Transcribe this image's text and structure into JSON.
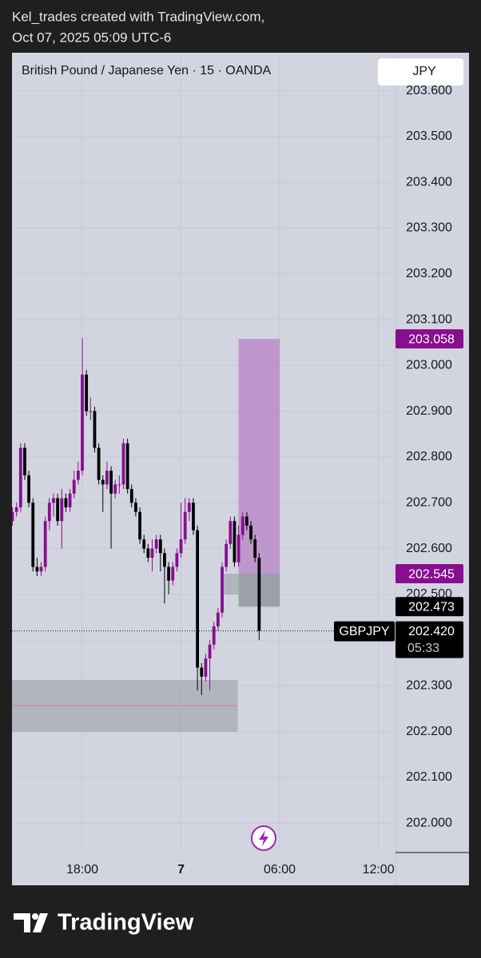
{
  "header": {
    "line1": "Kel_trades created with TradingView.com,",
    "line2": "Oct 07, 2025 05:09 UTC-6"
  },
  "currency": "JPY",
  "brand": "TradingView",
  "chart_data": {
    "type": "candlestick",
    "title": "British Pound / Japanese Yen · 15 · OANDA",
    "symbol": "GBPJPY",
    "countdown": "05:33",
    "up_color": "#880e8f",
    "down_color": "#000000",
    "x": [
      13.75,
      14,
      14.25,
      14.5,
      14.75,
      15,
      15.25,
      15.5,
      15.75,
      16,
      16.25,
      16.5,
      16.75,
      17,
      17.25,
      17.5,
      17.75,
      18,
      18.25,
      18.5,
      18.75,
      19,
      19.25,
      19.5,
      19.75,
      20,
      20.25,
      20.5,
      20.75,
      21,
      21.25,
      21.5,
      21.75,
      22,
      22.25,
      22.5,
      22.75,
      23,
      23.25,
      23.5,
      23.75,
      24,
      24.25,
      24.5,
      24.75,
      25,
      25.25,
      25.5,
      25.75,
      26,
      26.25,
      26.5,
      26.75,
      27,
      27.25,
      27.5,
      27.75,
      28,
      28.25,
      28.5,
      28.75
    ],
    "open": [
      202.66,
      202.68,
      202.69,
      202.82,
      202.76,
      202.7,
      202.56,
      202.55,
      202.56,
      202.66,
      202.7,
      202.71,
      202.66,
      202.71,
      202.69,
      202.72,
      202.75,
      202.77,
      202.98,
      202.9,
      202.9,
      202.82,
      202.75,
      202.74,
      202.77,
      202.72,
      202.74,
      202.74,
      202.83,
      202.73,
      202.7,
      202.68,
      202.62,
      202.6,
      202.58,
      202.6,
      202.62,
      202.59,
      202.56,
      202.53,
      202.56,
      202.59,
      202.62,
      202.68,
      202.7,
      202.64,
      202.34,
      202.32,
      202.36,
      202.39,
      202.43,
      202.46,
      202.56,
      202.61,
      202.66,
      202.57,
      202.63,
      202.67,
      202.65,
      202.62,
      202.58
    ],
    "high": [
      202.69,
      202.7,
      202.83,
      202.83,
      202.77,
      202.71,
      202.58,
      202.57,
      202.67,
      202.71,
      202.72,
      202.72,
      202.73,
      202.72,
      202.73,
      202.77,
      202.79,
      203.06,
      202.99,
      202.93,
      202.91,
      202.83,
      202.76,
      202.79,
      202.78,
      202.75,
      202.76,
      202.84,
      202.84,
      202.74,
      202.71,
      202.69,
      202.63,
      202.61,
      202.62,
      202.63,
      202.63,
      202.6,
      202.57,
      202.57,
      202.6,
      202.7,
      202.71,
      202.71,
      202.71,
      202.65,
      202.35,
      202.37,
      202.4,
      202.44,
      202.47,
      202.57,
      202.62,
      202.67,
      202.67,
      202.65,
      202.68,
      202.68,
      202.66,
      202.63,
      202.59
    ],
    "low": [
      202.65,
      202.67,
      202.68,
      202.75,
      202.69,
      202.55,
      202.54,
      202.54,
      202.55,
      202.64,
      202.67,
      202.65,
      202.6,
      202.68,
      202.68,
      202.71,
      202.74,
      202.76,
      202.89,
      202.88,
      202.81,
      202.74,
      202.68,
      202.73,
      202.6,
      202.71,
      202.72,
      202.73,
      202.72,
      202.69,
      202.67,
      202.61,
      202.59,
      202.57,
      202.55,
      202.59,
      202.55,
      202.48,
      202.5,
      202.52,
      202.55,
      202.58,
      202.61,
      202.66,
      202.63,
      202.29,
      202.28,
      202.31,
      202.29,
      202.38,
      202.42,
      202.45,
      202.55,
      202.6,
      202.56,
      202.56,
      202.62,
      202.64,
      202.61,
      202.57,
      202.4
    ],
    "close": [
      202.68,
      202.69,
      202.82,
      202.76,
      202.7,
      202.56,
      202.55,
      202.56,
      202.66,
      202.7,
      202.71,
      202.66,
      202.71,
      202.69,
      202.72,
      202.75,
      202.77,
      202.98,
      202.9,
      202.9,
      202.82,
      202.75,
      202.74,
      202.77,
      202.72,
      202.74,
      202.74,
      202.83,
      202.73,
      202.7,
      202.68,
      202.62,
      202.6,
      202.58,
      202.6,
      202.62,
      202.59,
      202.56,
      202.53,
      202.56,
      202.59,
      202.62,
      202.68,
      202.7,
      202.64,
      202.34,
      202.32,
      202.36,
      202.39,
      202.43,
      202.46,
      202.56,
      202.61,
      202.66,
      202.57,
      202.63,
      202.67,
      202.65,
      202.62,
      202.58,
      202.42
    ],
    "xlim": [
      13.725,
      37.04
    ],
    "xticks": [
      {
        "value": 18,
        "label": "18:00"
      },
      {
        "value": 24,
        "label": "7"
      },
      {
        "value": 30,
        "label": "06:00"
      },
      {
        "value": 36,
        "label": "12:00"
      }
    ],
    "ylim": [
      201.936,
      203.683
    ],
    "yticks": [
      {
        "value": 202.0,
        "label": "202.000"
      },
      {
        "value": 202.1,
        "label": "202.100"
      },
      {
        "value": 202.2,
        "label": "202.200"
      },
      {
        "value": 202.3,
        "label": "202.300"
      },
      {
        "value": 202.4,
        "label": "202.400"
      },
      {
        "value": 202.5,
        "label": "202.500"
      },
      {
        "value": 202.6,
        "label": "202.600"
      },
      {
        "value": 202.7,
        "label": "202.700"
      },
      {
        "value": 202.8,
        "label": "202.800"
      },
      {
        "value": 202.9,
        "label": "202.900"
      },
      {
        "value": 203.0,
        "label": "203.000"
      },
      {
        "value": 203.1,
        "label": "203.100"
      },
      {
        "value": 203.2,
        "label": "203.200"
      },
      {
        "value": 203.3,
        "label": "203.300"
      },
      {
        "value": 203.4,
        "label": "203.400"
      },
      {
        "value": 203.5,
        "label": "203.500"
      },
      {
        "value": 203.6,
        "label": "203.600"
      }
    ],
    "grid": true,
    "zones": [
      {
        "x": [
          27.5,
          30.0
        ],
        "y": [
          203.058,
          202.545
        ],
        "color": "#a64db5"
      },
      {
        "x": [
          27.5,
          30.0
        ],
        "y": [
          202.545,
          202.473
        ],
        "color": "#5d606b"
      },
      {
        "x": [
          26.6,
          27.5
        ],
        "y": [
          202.545,
          202.5
        ],
        "color": "#8a8d96"
      },
      {
        "x": [
          13.5,
          27.45
        ],
        "y": [
          202.313,
          202.2
        ],
        "color": "#8a8d96"
      }
    ],
    "levels": [
      {
        "x": [
          13.5,
          27.45
        ],
        "y": 202.257,
        "color": "#d47fa0"
      }
    ],
    "price_tags": [
      {
        "value": 203.058,
        "label": "203.058",
        "color": "#880e8f"
      },
      {
        "value": 202.545,
        "label": "202.545",
        "color": "#880e8f"
      },
      {
        "value": 202.473,
        "label": "202.473",
        "color": "#000000"
      }
    ],
    "last_price": {
      "value": 202.42,
      "label": "202.420"
    }
  }
}
